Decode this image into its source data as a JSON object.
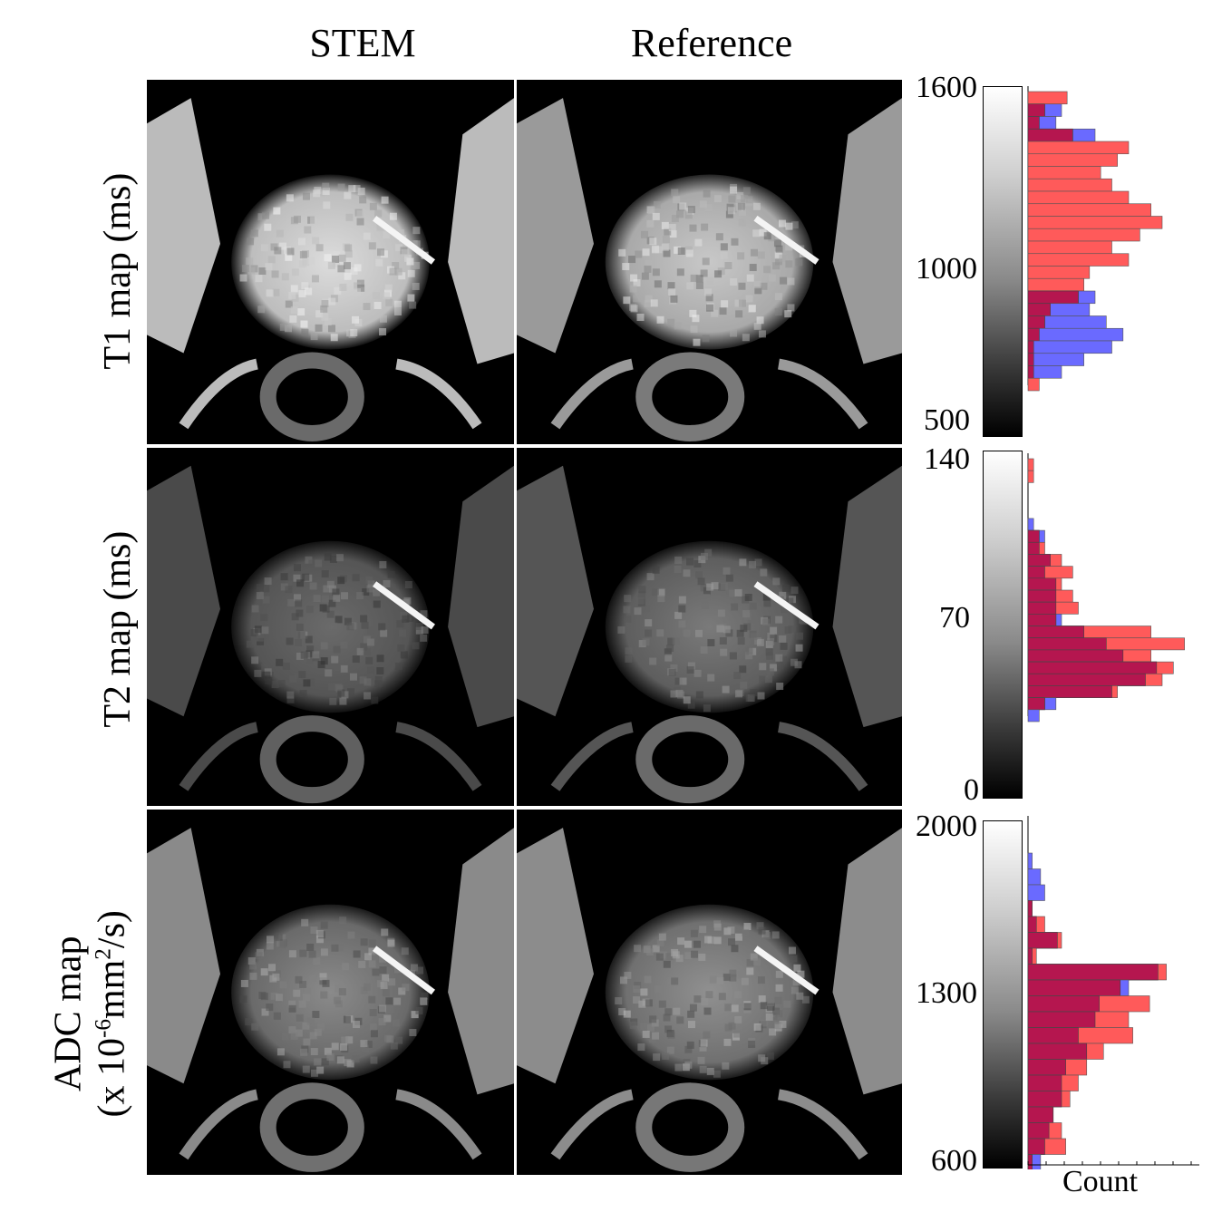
{
  "columns": [
    "STEM",
    "Reference"
  ],
  "rows": [
    {
      "label": "T1 map (ms)",
      "colorbar": {
        "max": "1600",
        "mid": "1000",
        "min": "500"
      },
      "histogram": {
        "bins": 24,
        "blue": [
          0,
          6,
          5,
          12,
          0,
          0,
          0,
          0,
          0,
          0,
          0,
          0,
          0,
          0,
          0,
          0,
          12,
          11,
          14,
          17,
          15,
          10,
          6,
          0
        ],
        "red": [
          7,
          3,
          2,
          8,
          18,
          16,
          13,
          15,
          18,
          22,
          24,
          20,
          15,
          18,
          11,
          10,
          9,
          4,
          3,
          2,
          1,
          1,
          1,
          2
        ]
      }
    },
    {
      "label": "T2 map (ms)",
      "colorbar": {
        "max": "140",
        "mid": "70",
        "min": "0"
      },
      "histogram": {
        "bins": 22,
        "blue": [
          0,
          0,
          0,
          0,
          0,
          1,
          3,
          2,
          4,
          3,
          5,
          5,
          5,
          6,
          10,
          14,
          17,
          23,
          21,
          15,
          5,
          2
        ],
        "red": [
          1,
          1,
          0,
          0,
          0,
          0,
          2,
          3,
          6,
          8,
          6,
          8,
          9,
          5,
          22,
          28,
          22,
          26,
          24,
          16,
          3,
          0
        ]
      }
    },
    {
      "label_line1": "ADC map",
      "label_line2": "(x 10",
      "label_sup1": "-6",
      "label_mid": "mm",
      "label_sup2": "2",
      "label_end": "/s)",
      "colorbar": {
        "max": "2000",
        "mid": "1300",
        "min": "600"
      },
      "histogram": {
        "bins": 22,
        "blue": [
          0,
          0,
          1,
          3,
          4,
          1,
          2,
          7,
          1,
          31,
          24,
          17,
          16,
          12,
          14,
          9,
          8,
          8,
          6,
          5,
          4,
          3
        ],
        "red": [
          0,
          0,
          0,
          0,
          0,
          1,
          4,
          8,
          2,
          33,
          22,
          29,
          24,
          25,
          18,
          14,
          12,
          10,
          6,
          8,
          9,
          1
        ]
      }
    }
  ],
  "x_axis_label": "Count",
  "colors": {
    "blue": "#6a6aff",
    "red": "#ff5a5a",
    "overlap": "#b5164f"
  }
}
